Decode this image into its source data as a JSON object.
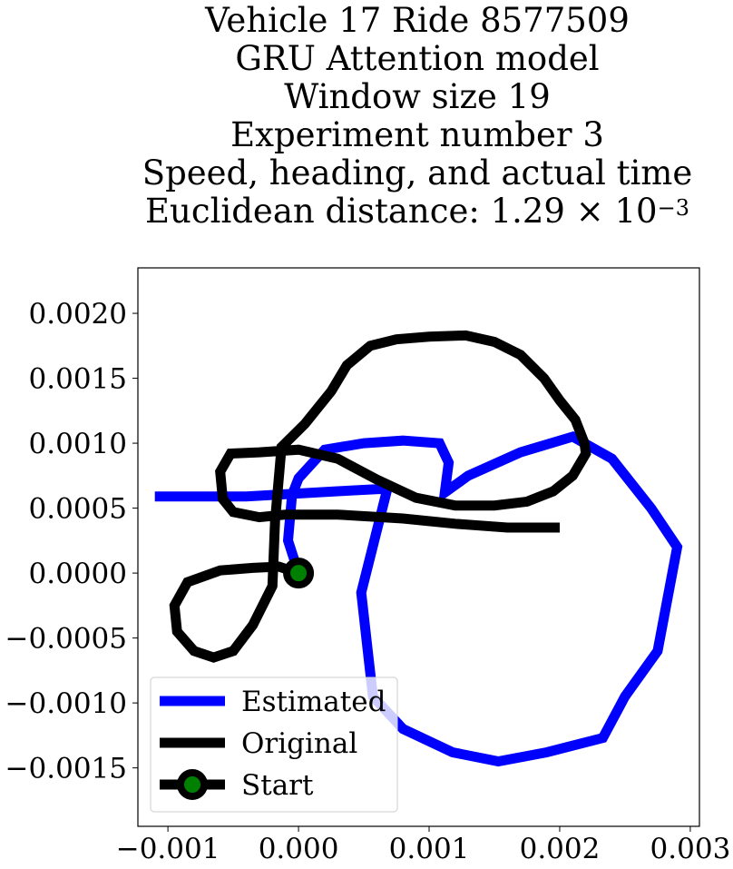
{
  "chart_data": {
    "type": "line",
    "title_lines": [
      "Vehicle 17 Ride 8577509",
      "GRU Attention model",
      "Window size 19",
      "Experiment number 3",
      "Speed, heading, and actual time"
    ],
    "title_distance_prefix": "Euclidean distance: 1.29 × 10",
    "title_distance_exponent": "−3",
    "xlim": [
      -0.00123,
      0.00307
    ],
    "ylim": [
      -0.00195,
      0.00235
    ],
    "x_ticks": [
      -0.001,
      0.0,
      0.001,
      0.002,
      0.003
    ],
    "x_tick_labels": [
      "−0.001",
      "0.000",
      "0.001",
      "0.002",
      "0.003"
    ],
    "y_ticks": [
      0.002,
      0.0015,
      0.001,
      0.0005,
      0.0,
      -0.0005,
      -0.001,
      -0.0015
    ],
    "y_tick_labels": [
      "0.0020",
      "0.0015",
      "0.0010",
      "0.0005",
      "0.0000",
      "−0.0005",
      "−0.0010",
      "−0.0015"
    ],
    "grid": false,
    "legend_position": "lower-left",
    "series": [
      {
        "name": "Estimated",
        "color": "#0000ff",
        "points": [
          [
            0.0,
            0.0
          ],
          [
            -8e-05,
            0.00025
          ],
          [
            -5e-05,
            0.0006
          ],
          [
            0.0,
            0.00073
          ],
          [
            0.0002,
            0.00095
          ],
          [
            0.0005,
            0.001
          ],
          [
            0.0008,
            0.00102
          ],
          [
            0.00108,
            0.001
          ],
          [
            0.00115,
            0.00085
          ],
          [
            0.00112,
            0.00062
          ],
          [
            0.0013,
            0.00075
          ],
          [
            0.0017,
            0.00093
          ],
          [
            0.0021,
            0.00105
          ],
          [
            0.0024,
            0.00088
          ],
          [
            0.0027,
            0.0005
          ],
          [
            0.0029,
            0.0002
          ],
          [
            0.00275,
            -0.0006
          ],
          [
            0.0025,
            -0.00095
          ],
          [
            0.00233,
            -0.00127
          ],
          [
            0.0019,
            -0.00138
          ],
          [
            0.00153,
            -0.00145
          ],
          [
            0.00118,
            -0.00138
          ],
          [
            0.0008,
            -0.0012
          ],
          [
            0.00057,
            -0.00095
          ],
          [
            0.00053,
            -0.0006
          ],
          [
            0.00048,
            -0.00015
          ],
          [
            0.00058,
            0.00025
          ],
          [
            0.00068,
            0.00065
          ],
          [
            0.0003,
            0.00063
          ],
          [
            -0.0004,
            0.00059
          ],
          [
            -0.0011,
            0.00059
          ]
        ]
      },
      {
        "name": "Original",
        "color": "#000000",
        "points": [
          [
            0.0,
            0.0
          ],
          [
            -0.00015,
            5e-05
          ],
          [
            -0.00035,
            4e-05
          ],
          [
            -0.0006,
            2e-05
          ],
          [
            -0.00085,
            -7e-05
          ],
          [
            -0.00095,
            -0.00025
          ],
          [
            -0.00093,
            -0.00045
          ],
          [
            -0.0008,
            -0.0006
          ],
          [
            -0.00065,
            -0.00065
          ],
          [
            -0.0005,
            -0.0006
          ],
          [
            -0.00035,
            -0.0004
          ],
          [
            -0.0002,
            -0.0001
          ],
          [
            -0.00018,
            0.0004
          ],
          [
            -0.00013,
            0.00097
          ],
          [
            5e-05,
            0.00115
          ],
          [
            0.00025,
            0.0014
          ],
          [
            0.00037,
            0.0016
          ],
          [
            0.00055,
            0.00175
          ],
          [
            0.00075,
            0.0018
          ],
          [
            0.001,
            0.00182
          ],
          [
            0.00128,
            0.00183
          ],
          [
            0.0015,
            0.00178
          ],
          [
            0.0017,
            0.00168
          ],
          [
            0.00188,
            0.0015
          ],
          [
            0.002,
            0.00133
          ],
          [
            0.00212,
            0.00118
          ],
          [
            0.00219,
            0.001
          ],
          [
            0.0022,
            0.00092
          ],
          [
            0.0021,
            0.00075
          ],
          [
            0.00195,
            0.00063
          ],
          [
            0.00175,
            0.00055
          ],
          [
            0.0015,
            0.00052
          ],
          [
            0.0012,
            0.00052
          ],
          [
            0.0009,
            0.00058
          ],
          [
            0.0006,
            0.00072
          ],
          [
            0.0003,
            0.00088
          ],
          [
            0.0,
            0.00095
          ],
          [
            -0.0003,
            0.00093
          ],
          [
            -0.00052,
            0.00092
          ],
          [
            -0.0006,
            0.00078
          ],
          [
            -0.00058,
            0.00057
          ],
          [
            -0.0005,
            0.00047
          ],
          [
            -0.0003,
            0.00043
          ],
          [
            -0.0001,
            0.00045
          ],
          [
            0.0003,
            0.00045
          ],
          [
            0.0008,
            0.00042
          ],
          [
            0.0012,
            0.00038
          ],
          [
            0.0016,
            0.00035
          ],
          [
            0.002,
            0.00035
          ]
        ]
      }
    ],
    "legend": [
      {
        "name": "Estimated",
        "color": "#0000ff",
        "kind": "line"
      },
      {
        "name": "Original",
        "color": "#000000",
        "kind": "line"
      },
      {
        "name": "Start",
        "color": "#000000",
        "marker_color": "#008000",
        "kind": "marker"
      }
    ],
    "start_point": [
      0.0,
      0.0
    ]
  }
}
